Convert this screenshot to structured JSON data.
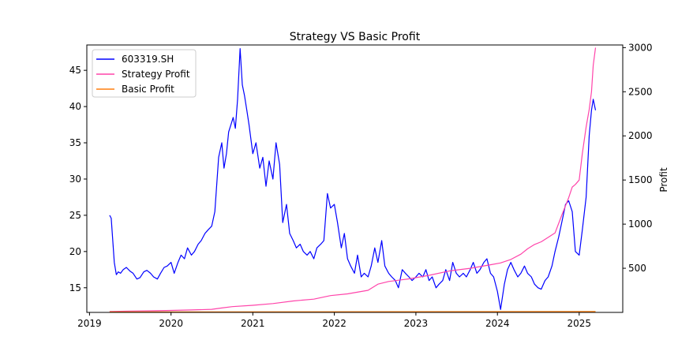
{
  "chart_data": {
    "type": "line",
    "title": "Strategy VS Basic Profit",
    "xlabel": "",
    "ylabel": "",
    "y2label": "Profit",
    "legend_position": "top-left",
    "grid": false,
    "x_ticks": [
      "2019",
      "2020",
      "2021",
      "2022",
      "2023",
      "2024",
      "2025"
    ],
    "y_ticks": [
      15,
      20,
      25,
      30,
      35,
      40,
      45
    ],
    "y2_ticks": [
      500,
      1000,
      1500,
      2000,
      2500,
      3000
    ],
    "xlim": [
      "2018-12-20",
      "2025-07-15"
    ],
    "ylim": [
      11.6,
      48.5
    ],
    "y2lim": [
      0,
      3030
    ],
    "colors": {
      "price": "#0000ff",
      "strategy": "#ff44aa",
      "basic": "#ff7f0e"
    },
    "series": [
      {
        "name": "603319.SH",
        "axis": "left",
        "x": [
          "2019-04-01",
          "2019-04-08",
          "2019-04-22",
          "2019-05-01",
          "2019-05-10",
          "2019-05-20",
          "2019-06-01",
          "2019-06-15",
          "2019-07-01",
          "2019-07-15",
          "2019-08-01",
          "2019-08-15",
          "2019-09-01",
          "2019-09-15",
          "2019-10-01",
          "2019-10-15",
          "2019-11-01",
          "2019-11-15",
          "2019-12-01",
          "2019-12-15",
          "2020-01-01",
          "2020-01-15",
          "2020-02-01",
          "2020-02-15",
          "2020-03-01",
          "2020-03-15",
          "2020-04-01",
          "2020-04-15",
          "2020-05-01",
          "2020-05-15",
          "2020-06-01",
          "2020-06-15",
          "2020-07-01",
          "2020-07-15",
          "2020-08-01",
          "2020-08-15",
          "2020-08-25",
          "2020-09-05",
          "2020-09-15",
          "2020-09-25",
          "2020-10-05",
          "2020-10-15",
          "2020-10-25",
          "2020-11-05",
          "2020-11-15",
          "2020-11-25",
          "2020-12-05",
          "2020-12-15",
          "2021-01-01",
          "2021-01-15",
          "2021-02-01",
          "2021-02-15",
          "2021-03-01",
          "2021-03-15",
          "2021-04-01",
          "2021-04-15",
          "2021-05-01",
          "2021-05-15",
          "2021-06-01",
          "2021-06-15",
          "2021-07-01",
          "2021-07-15",
          "2021-08-01",
          "2021-08-15",
          "2021-09-01",
          "2021-09-15",
          "2021-10-01",
          "2021-10-15",
          "2021-11-01",
          "2021-11-15",
          "2021-12-01",
          "2021-12-15",
          "2022-01-01",
          "2022-01-15",
          "2022-02-01",
          "2022-02-15",
          "2022-03-01",
          "2022-03-15",
          "2022-04-01",
          "2022-04-15",
          "2022-05-01",
          "2022-05-15",
          "2022-06-01",
          "2022-06-15",
          "2022-07-01",
          "2022-07-15",
          "2022-08-01",
          "2022-08-15",
          "2022-09-01",
          "2022-09-15",
          "2022-10-01",
          "2022-10-15",
          "2022-11-01",
          "2022-11-15",
          "2022-12-01",
          "2022-12-15",
          "2023-01-01",
          "2023-01-15",
          "2023-02-01",
          "2023-02-15",
          "2023-03-01",
          "2023-03-15",
          "2023-04-01",
          "2023-04-15",
          "2023-05-01",
          "2023-05-15",
          "2023-06-01",
          "2023-06-15",
          "2023-07-01",
          "2023-07-15",
          "2023-08-01",
          "2023-08-15",
          "2023-09-01",
          "2023-09-15",
          "2023-10-01",
          "2023-10-15",
          "2023-11-01",
          "2023-11-15",
          "2023-12-01",
          "2023-12-15",
          "2024-01-01",
          "2024-01-15",
          "2024-02-01",
          "2024-02-15",
          "2024-03-01",
          "2024-03-15",
          "2024-04-01",
          "2024-04-15",
          "2024-05-01",
          "2024-05-15",
          "2024-06-01",
          "2024-06-15",
          "2024-07-01",
          "2024-07-15",
          "2024-08-01",
          "2024-08-15",
          "2024-09-01",
          "2024-09-15",
          "2024-10-01",
          "2024-10-15",
          "2024-11-01",
          "2024-11-15",
          "2024-12-01",
          "2024-12-15",
          "2025-01-01",
          "2025-01-15",
          "2025-02-01",
          "2025-02-15",
          "2025-02-25",
          "2025-03-05",
          "2025-03-15"
        ],
        "values": [
          25.0,
          24.6,
          18.5,
          16.8,
          17.2,
          17.0,
          17.5,
          17.8,
          17.3,
          17.0,
          16.2,
          16.4,
          17.2,
          17.4,
          17.0,
          16.5,
          16.2,
          17.0,
          17.8,
          18.0,
          18.5,
          17.0,
          18.5,
          19.5,
          19.0,
          20.5,
          19.5,
          20.0,
          21.0,
          21.5,
          22.5,
          23.0,
          23.5,
          25.5,
          33.0,
          35.0,
          31.5,
          33.5,
          36.5,
          37.5,
          38.5,
          37.0,
          41.0,
          48.0,
          43.0,
          41.5,
          39.5,
          37.5,
          33.5,
          35.0,
          31.5,
          33.0,
          29.0,
          32.5,
          30.0,
          35.0,
          32.0,
          24.0,
          26.5,
          22.5,
          21.5,
          20.5,
          21.0,
          20.0,
          19.5,
          20.0,
          19.0,
          20.5,
          21.0,
          21.5,
          28.0,
          26.0,
          26.5,
          24.0,
          20.5,
          22.5,
          19.0,
          18.0,
          17.0,
          19.5,
          16.5,
          17.0,
          16.5,
          18.0,
          20.5,
          18.5,
          21.5,
          18.0,
          17.0,
          16.5,
          16.0,
          15.0,
          17.5,
          17.0,
          16.5,
          16.0,
          16.5,
          17.0,
          16.5,
          17.5,
          16.0,
          16.5,
          15.0,
          15.5,
          16.0,
          17.5,
          16.0,
          18.5,
          17.0,
          16.5,
          17.0,
          16.5,
          17.5,
          18.5,
          17.0,
          17.5,
          18.5,
          19.0,
          17.0,
          16.5,
          14.5,
          12.0,
          15.5,
          17.5,
          18.5,
          17.5,
          16.5,
          17.0,
          18.0,
          17.0,
          16.5,
          15.5,
          15.0,
          14.8,
          16.0,
          16.5,
          18.0,
          20.0,
          22.0,
          24.0,
          26.5,
          27.0,
          25.5,
          20.0,
          19.5,
          23.0,
          27.5,
          36.0,
          39.5,
          41.0,
          39.5
        ]
      },
      {
        "name": "Strategy Profit",
        "axis": "right",
        "x": [
          "2019-04-01",
          "2019-07-01",
          "2019-10-01",
          "2020-01-01",
          "2020-04-01",
          "2020-07-01",
          "2020-08-15",
          "2020-10-01",
          "2021-01-01",
          "2021-04-01",
          "2021-07-01",
          "2021-10-01",
          "2021-12-15",
          "2022-03-01",
          "2022-06-01",
          "2022-07-15",
          "2022-09-01",
          "2022-12-01",
          "2023-03-01",
          "2023-06-01",
          "2023-09-01",
          "2023-12-01",
          "2024-01-15",
          "2024-03-01",
          "2024-04-15",
          "2024-05-15",
          "2024-06-15",
          "2024-07-15",
          "2024-08-15",
          "2024-09-15",
          "2024-10-15",
          "2024-11-15",
          "2024-12-01",
          "2024-12-15",
          "2025-01-01",
          "2025-01-15",
          "2025-02-01",
          "2025-02-15",
          "2025-02-25",
          "2025-03-05",
          "2025-03-15"
        ],
        "values": [
          10,
          15,
          18,
          22,
          28,
          35,
          50,
          65,
          80,
          100,
          130,
          150,
          190,
          210,
          250,
          320,
          350,
          380,
          420,
          470,
          500,
          540,
          560,
          600,
          660,
          720,
          770,
          800,
          850,
          900,
          1100,
          1300,
          1420,
          1450,
          1500,
          1800,
          2100,
          2300,
          2500,
          2800,
          3000
        ]
      },
      {
        "name": "Basic Profit",
        "axis": "right",
        "x": [
          "2019-04-01",
          "2025-03-15"
        ],
        "values": [
          5,
          10
        ]
      }
    ]
  }
}
